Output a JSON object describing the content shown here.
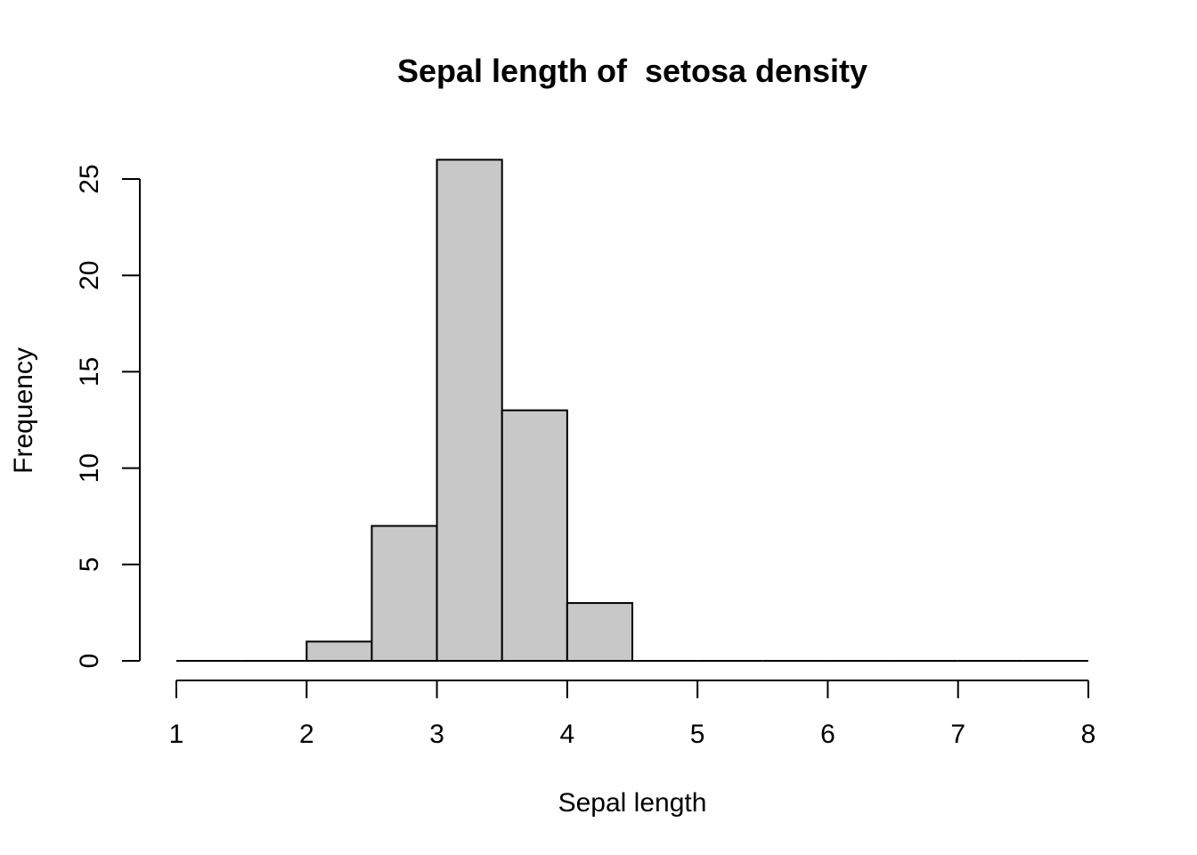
{
  "chart_data": {
    "type": "bar",
    "title": "Sepal length of  setosa density",
    "xlabel": "Sepal length",
    "ylabel": "Frequency",
    "bin_edges": [
      1,
      1.5,
      2,
      2.5,
      3,
      3.5,
      4,
      4.5,
      5,
      5.5,
      6,
      6.5,
      7,
      7.5,
      8
    ],
    "values": [
      0,
      0,
      1,
      7,
      26,
      13,
      3,
      0,
      0,
      0,
      0,
      0,
      0,
      0
    ],
    "xlim": [
      1,
      8
    ],
    "ylim": [
      0,
      26
    ],
    "x_ticks": [
      "1",
      "2",
      "3",
      "4",
      "5",
      "6",
      "7",
      "8"
    ],
    "y_ticks": [
      "0",
      "5",
      "10",
      "15",
      "20",
      "25"
    ],
    "bar_color": "#c8c8c8",
    "grid": false,
    "legend": "none"
  }
}
